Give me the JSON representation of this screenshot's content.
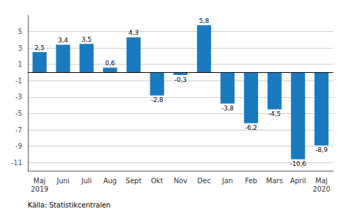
{
  "chart_data": {
    "type": "bar",
    "categories": [
      "Maj\n2019",
      "Juni",
      "Juli",
      "Aug",
      "Sept",
      "Okt",
      "Nov",
      "Dec",
      "Jan",
      "Feb",
      "Mars",
      "April",
      "Maj\n2020"
    ],
    "values": [
      2.5,
      3.4,
      3.5,
      0.6,
      4.3,
      -2.8,
      -0.3,
      5.8,
      -3.8,
      -6.2,
      -4.5,
      -10.6,
      -8.9
    ],
    "value_labels": [
      "2,5",
      "3,4",
      "3,5",
      "0,6",
      "4,3",
      "-2,8",
      "-0,3",
      "5,8",
      "-3,8",
      "-6,2",
      "-4,5",
      "-10,6",
      "-8,9"
    ],
    "color": "#1a7abf",
    "ylim": [
      -12,
      7
    ],
    "yticks": [
      -11,
      -9,
      -7,
      -5,
      -3,
      -1,
      1,
      3,
      5
    ],
    "grid": true,
    "data_labels": true,
    "annotations": [
      "Källa: Statistikcentralen"
    ]
  }
}
